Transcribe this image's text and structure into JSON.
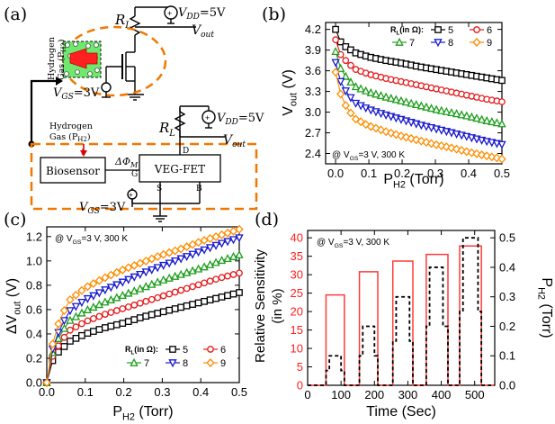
{
  "panel_labels": {
    "a": "(a)",
    "b": "(b)",
    "c": "(c)",
    "d": "(d)"
  },
  "circuit": {
    "rl_top": "R",
    "rl_top_sub": "L",
    "vdd_top": "V",
    "vdd_top_sub": "DD",
    "vdd_top_val": "=5V",
    "vout_top": "V",
    "vout_top_sub": "out",
    "hydrogen_vertical": "Hydrogen\nGas (P_H2)",
    "vgs_top": "V",
    "vgs_top_sub": "GS",
    "vgs_top_val": "=3V",
    "rl_bot": "R",
    "rl_bot_sub": "L",
    "vdd_bot": "V",
    "vdd_bot_sub": "DD",
    "vdd_bot_val": "=5V",
    "vout_bot": "V",
    "vout_bot_sub": "out",
    "hydrogen_line1": "Hydrogen",
    "hydrogen_line2": "Gas (P",
    "hydrogen_line2_sub": "H2",
    "hydrogen_line2_end": ")",
    "biosensor": "Biosensor",
    "delta_phi": "ΔΦ",
    "delta_phi_sub": "M",
    "veg_fet": "VEG-FET",
    "pin_g": "G",
    "pin_d": "D",
    "pin_s": "S",
    "pin_b": "B",
    "vgs_bot": "V",
    "vgs_bot_sub": "GS",
    "vgs_bot_val": "=3V"
  },
  "colors": {
    "r5": "#000000",
    "r6": "#e41a1c",
    "r7": "#1f9e1f",
    "r8": "#1a1acc",
    "r9": "#ff8c00",
    "orange_dash": "#f07800",
    "pulse_red": "#ff3b3b"
  },
  "chart_data": [
    {
      "id": "b",
      "type": "line",
      "title": "",
      "xlabel": "P",
      "xlabel_sub": "H2",
      "xlabel_unit": " (Torr)",
      "ylabel": "V",
      "ylabel_sub": "out",
      "ylabel_unit": " (V)",
      "xlim": [
        -0.03,
        0.5
      ],
      "ylim": [
        2.25,
        4.3
      ],
      "xticks": [
        "0.0",
        "0.1",
        "0.2",
        "0.3",
        "0.4",
        "0.5"
      ],
      "xtick_values": [
        0,
        0.1,
        0.2,
        0.3,
        0.4,
        0.5
      ],
      "yticks": [
        "2.4",
        "2.7",
        "3.0",
        "3.3",
        "3.6",
        "3.9",
        "4.2"
      ],
      "ytick_values": [
        2.4,
        2.7,
        3.0,
        3.3,
        3.6,
        3.9,
        4.2
      ],
      "annotation": "@ V",
      "annotation_sub": "GS",
      "annotation_end": "=3 V, 300 K",
      "legend_title": "R",
      "legend_title_sub": "L",
      "legend_title_end": "(in Ω):",
      "legend_position": "top-right",
      "series": [
        {
          "name": "5",
          "marker": "square",
          "color": "#000000",
          "x": [
            0,
            0.005,
            0.01,
            0.02,
            0.03,
            0.04,
            0.06,
            0.1,
            0.15,
            0.2,
            0.25,
            0.3,
            0.35,
            0.4,
            0.45,
            0.5
          ],
          "values": [
            4.2,
            4.12,
            4.05,
            3.99,
            3.95,
            3.92,
            3.86,
            3.8,
            3.75,
            3.71,
            3.66,
            3.62,
            3.58,
            3.54,
            3.5,
            3.46
          ]
        },
        {
          "name": "6",
          "marker": "circle",
          "color": "#e41a1c",
          "x": [
            0,
            0.005,
            0.01,
            0.02,
            0.03,
            0.04,
            0.06,
            0.1,
            0.15,
            0.2,
            0.25,
            0.3,
            0.35,
            0.4,
            0.45,
            0.5
          ],
          "values": [
            4.05,
            3.95,
            3.87,
            3.8,
            3.75,
            3.7,
            3.62,
            3.55,
            3.49,
            3.44,
            3.39,
            3.34,
            3.29,
            3.24,
            3.19,
            3.15
          ]
        },
        {
          "name": "7",
          "marker": "triangle",
          "color": "#1f9e1f",
          "x": [
            0,
            0.005,
            0.01,
            0.02,
            0.03,
            0.04,
            0.06,
            0.1,
            0.15,
            0.2,
            0.25,
            0.3,
            0.35,
            0.4,
            0.45,
            0.5
          ],
          "values": [
            3.88,
            3.78,
            3.68,
            3.59,
            3.52,
            3.46,
            3.37,
            3.29,
            3.22,
            3.16,
            3.1,
            3.04,
            2.99,
            2.94,
            2.88,
            2.83
          ]
        },
        {
          "name": "8",
          "marker": "triangle-down",
          "color": "#1a1acc",
          "x": [
            0,
            0.005,
            0.01,
            0.02,
            0.03,
            0.04,
            0.06,
            0.1,
            0.15,
            0.2,
            0.25,
            0.3,
            0.35,
            0.4,
            0.45,
            0.5
          ],
          "values": [
            3.72,
            3.61,
            3.5,
            3.39,
            3.31,
            3.24,
            3.13,
            3.04,
            2.96,
            2.89,
            2.82,
            2.76,
            2.7,
            2.64,
            2.58,
            2.53
          ]
        },
        {
          "name": "9",
          "marker": "diamond",
          "color": "#ff8c00",
          "x": [
            0,
            0.005,
            0.01,
            0.02,
            0.03,
            0.04,
            0.06,
            0.1,
            0.15,
            0.2,
            0.25,
            0.3,
            0.35,
            0.4,
            0.45,
            0.5
          ],
          "values": [
            3.58,
            3.45,
            3.33,
            3.2,
            3.1,
            3.02,
            2.9,
            2.8,
            2.72,
            2.65,
            2.59,
            2.53,
            2.48,
            2.42,
            2.37,
            2.32
          ]
        }
      ]
    },
    {
      "id": "c",
      "type": "line",
      "title": "",
      "xlabel": "P",
      "xlabel_sub": "H2",
      "xlabel_unit": " (Torr)",
      "ylabel": "ΔV",
      "ylabel_sub": "out",
      "ylabel_unit": " (V)",
      "xlim": [
        0,
        0.5
      ],
      "ylim": [
        0,
        1.28
      ],
      "xticks": [
        "0.0",
        "0.1",
        "0.2",
        "0.3",
        "0.4",
        "0.5"
      ],
      "xtick_values": [
        0,
        0.1,
        0.2,
        0.3,
        0.4,
        0.5
      ],
      "yticks": [
        "0.0",
        "0.2",
        "0.4",
        "0.6",
        "0.8",
        "1.0",
        "1.2"
      ],
      "ytick_values": [
        0,
        0.2,
        0.4,
        0.6,
        0.8,
        1.0,
        1.2
      ],
      "annotation": "@ V",
      "annotation_sub": "GS",
      "annotation_end": "=3 V, 300 K",
      "legend_title": "R",
      "legend_title_sub": "L",
      "legend_title_end": "(in Ω):",
      "legend_position": "bottom-right",
      "series": [
        {
          "name": "5",
          "marker": "square",
          "color": "#000000",
          "x": [
            0,
            0.005,
            0.01,
            0.02,
            0.03,
            0.04,
            0.06,
            0.1,
            0.15,
            0.2,
            0.25,
            0.3,
            0.35,
            0.4,
            0.45,
            0.5
          ],
          "values": [
            0,
            0.08,
            0.15,
            0.21,
            0.25,
            0.28,
            0.34,
            0.4,
            0.45,
            0.49,
            0.54,
            0.58,
            0.62,
            0.66,
            0.7,
            0.74
          ]
        },
        {
          "name": "6",
          "marker": "circle",
          "color": "#e41a1c",
          "x": [
            0,
            0.005,
            0.01,
            0.02,
            0.03,
            0.04,
            0.06,
            0.1,
            0.15,
            0.2,
            0.25,
            0.3,
            0.35,
            0.4,
            0.45,
            0.5
          ],
          "values": [
            0,
            0.1,
            0.18,
            0.25,
            0.3,
            0.35,
            0.43,
            0.5,
            0.56,
            0.61,
            0.66,
            0.71,
            0.76,
            0.81,
            0.86,
            0.9
          ]
        },
        {
          "name": "7",
          "marker": "triangle",
          "color": "#1f9e1f",
          "x": [
            0,
            0.005,
            0.01,
            0.02,
            0.03,
            0.04,
            0.06,
            0.1,
            0.15,
            0.2,
            0.25,
            0.3,
            0.35,
            0.4,
            0.45,
            0.5
          ],
          "values": [
            0,
            0.1,
            0.2,
            0.29,
            0.36,
            0.42,
            0.51,
            0.59,
            0.66,
            0.72,
            0.78,
            0.84,
            0.89,
            0.94,
            1.0,
            1.05
          ]
        },
        {
          "name": "8",
          "marker": "triangle-down",
          "color": "#1a1acc",
          "x": [
            0,
            0.005,
            0.01,
            0.02,
            0.03,
            0.04,
            0.06,
            0.1,
            0.15,
            0.2,
            0.25,
            0.3,
            0.35,
            0.4,
            0.45,
            0.5
          ],
          "values": [
            0,
            0.11,
            0.22,
            0.33,
            0.41,
            0.48,
            0.59,
            0.68,
            0.76,
            0.83,
            0.9,
            0.96,
            1.02,
            1.08,
            1.14,
            1.19
          ]
        },
        {
          "name": "9",
          "marker": "diamond",
          "color": "#ff8c00",
          "x": [
            0,
            0.005,
            0.01,
            0.02,
            0.03,
            0.04,
            0.06,
            0.1,
            0.15,
            0.2,
            0.25,
            0.3,
            0.35,
            0.4,
            0.45,
            0.5
          ],
          "values": [
            0,
            0.13,
            0.25,
            0.38,
            0.48,
            0.56,
            0.68,
            0.78,
            0.86,
            0.93,
            0.99,
            1.05,
            1.1,
            1.16,
            1.21,
            1.26
          ]
        }
      ]
    },
    {
      "id": "d",
      "type": "line",
      "title": "",
      "xlabel": "Time (Sec)",
      "ylabel_left_line1": "Relative Sensitivity",
      "ylabel_left_line2": "(in %)",
      "ylabel_right": "P",
      "ylabel_right_sub": "H2",
      "ylabel_right_unit": " (Torr)",
      "xlim": [
        0,
        560
      ],
      "ylim_left": [
        0,
        42
      ],
      "ylim_right": [
        0,
        0.525
      ],
      "xticks": [
        "0",
        "100",
        "200",
        "300",
        "400",
        "500"
      ],
      "xtick_values": [
        0,
        100,
        200,
        300,
        400,
        500
      ],
      "yticks_left": [
        "0",
        "5",
        "10",
        "15",
        "20",
        "25",
        "30",
        "35",
        "40"
      ],
      "ytick_left_values": [
        0,
        5,
        10,
        15,
        20,
        25,
        30,
        35,
        40
      ],
      "yticks_right": [
        "0.0",
        "0.1",
        "0.2",
        "0.3",
        "0.4",
        "0.5"
      ],
      "ytick_right_values": [
        0,
        0.1,
        0.2,
        0.3,
        0.4,
        0.5
      ],
      "annotation": "@ V",
      "annotation_sub": "GS",
      "annotation_end": "=3 V, 300 K",
      "series": [
        {
          "name": "Relative Sensitivity",
          "axis": "left",
          "color": "#ff3b3b",
          "style": "solid",
          "x": [
            0,
            55,
            55,
            110,
            110,
            155,
            155,
            210,
            210,
            255,
            255,
            315,
            315,
            355,
            355,
            420,
            420,
            455,
            455,
            520,
            520,
            560
          ],
          "values": [
            0,
            0,
            24.5,
            24.5,
            0,
            0,
            30.8,
            30.8,
            0,
            0,
            33.7,
            33.7,
            0,
            0,
            35.5,
            35.5,
            0,
            0,
            37.8,
            37.8,
            0,
            0
          ]
        },
        {
          "name": "P_H2",
          "axis": "right",
          "color": "#000000",
          "style": "dashed",
          "x": [
            0,
            55,
            55,
            65,
            65,
            100,
            100,
            110,
            110,
            155,
            155,
            165,
            165,
            200,
            200,
            210,
            210,
            255,
            255,
            265,
            265,
            305,
            305,
            315,
            315,
            355,
            355,
            365,
            365,
            405,
            405,
            420,
            420,
            455,
            455,
            465,
            465,
            510,
            510,
            520,
            520,
            560
          ],
          "values": [
            0,
            0,
            0.05,
            0.05,
            0.1,
            0.1,
            0.05,
            0.05,
            0,
            0,
            0.1,
            0.1,
            0.2,
            0.2,
            0.1,
            0.1,
            0,
            0,
            0.15,
            0.15,
            0.3,
            0.3,
            0.15,
            0.15,
            0,
            0,
            0.2,
            0.2,
            0.4,
            0.4,
            0.2,
            0.2,
            0,
            0,
            0.25,
            0.25,
            0.5,
            0.5,
            0.25,
            0.25,
            0,
            0
          ]
        }
      ]
    }
  ]
}
